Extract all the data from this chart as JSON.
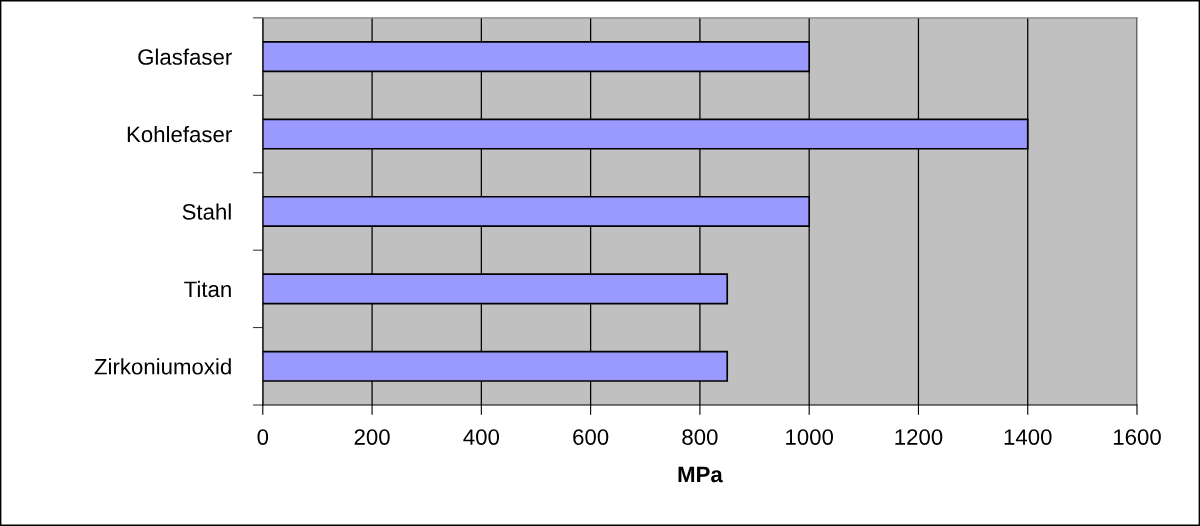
{
  "chart_data": {
    "type": "bar",
    "orientation": "horizontal",
    "xlabel": "MPa",
    "categories": [
      "Glasfaser",
      "Kohlefaser",
      "Stahl",
      "Titan",
      "Zirkoniumoxid"
    ],
    "values": [
      1000,
      1400,
      1000,
      850,
      850
    ],
    "color": "#9999ff",
    "xlim": [
      0,
      1600
    ],
    "xticks": [
      0,
      200,
      400,
      600,
      800,
      1000,
      1200,
      1400,
      1600
    ],
    "grid": "x",
    "legend": false
  }
}
